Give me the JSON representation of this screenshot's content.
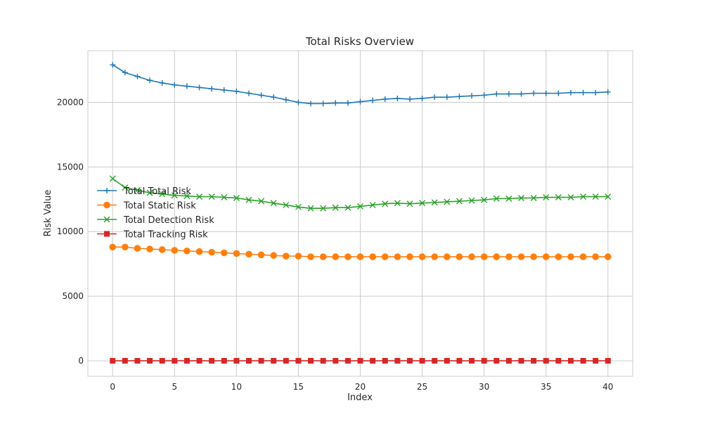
{
  "chart_data": {
    "type": "line",
    "title": "Total Risks Overview",
    "xlabel": "Index",
    "ylabel": "Risk Value",
    "xlim": [
      -2,
      42
    ],
    "ylim": [
      -1200,
      24000
    ],
    "xticks": [
      0,
      5,
      10,
      15,
      20,
      25,
      30,
      35,
      40
    ],
    "yticks": [
      0,
      5000,
      10000,
      15000,
      20000
    ],
    "grid": true,
    "legend_position": "center-left",
    "x": [
      0,
      1,
      2,
      3,
      4,
      5,
      6,
      7,
      8,
      9,
      10,
      11,
      12,
      13,
      14,
      15,
      16,
      17,
      18,
      19,
      20,
      21,
      22,
      23,
      24,
      25,
      26,
      27,
      28,
      29,
      30,
      31,
      32,
      33,
      34,
      35,
      36,
      37,
      38,
      39,
      40
    ],
    "series": [
      {
        "name": "Total Total Risk",
        "color": "#1f77b4",
        "marker": "plus",
        "values": [
          22900,
          22300,
          22000,
          21700,
          21500,
          21350,
          21250,
          21150,
          21050,
          20950,
          20850,
          20700,
          20550,
          20400,
          20200,
          20000,
          19900,
          19900,
          19950,
          19950,
          20050,
          20150,
          20250,
          20300,
          20250,
          20300,
          20400,
          20400,
          20450,
          20500,
          20550,
          20650,
          20650,
          20650,
          20700,
          20700,
          20700,
          20750,
          20750,
          20750,
          20800
        ]
      },
      {
        "name": "Total Static Risk",
        "color": "#ff7f0e",
        "marker": "circle",
        "values": [
          8800,
          8800,
          8700,
          8650,
          8600,
          8550,
          8500,
          8450,
          8400,
          8350,
          8300,
          8250,
          8200,
          8150,
          8100,
          8100,
          8050,
          8050,
          8050,
          8050,
          8050,
          8050,
          8050,
          8050,
          8050,
          8050,
          8050,
          8050,
          8050,
          8050,
          8050,
          8050,
          8050,
          8050,
          8050,
          8050,
          8050,
          8050,
          8050,
          8050,
          8050
        ]
      },
      {
        "name": "Total Detection Risk",
        "color": "#2ca02c",
        "marker": "x",
        "values": [
          14100,
          13400,
          13200,
          13000,
          12900,
          12800,
          12750,
          12700,
          12700,
          12650,
          12600,
          12450,
          12350,
          12200,
          12050,
          11900,
          11800,
          11800,
          11850,
          11850,
          11950,
          12050,
          12150,
          12200,
          12150,
          12200,
          12250,
          12300,
          12350,
          12400,
          12450,
          12550,
          12550,
          12600,
          12600,
          12650,
          12650,
          12650,
          12700,
          12700,
          12700
        ]
      },
      {
        "name": "Total Tracking Risk",
        "color": "#d62728",
        "marker": "square",
        "values": [
          0,
          0,
          0,
          0,
          0,
          0,
          0,
          0,
          0,
          0,
          0,
          0,
          0,
          0,
          0,
          0,
          0,
          0,
          0,
          0,
          0,
          0,
          0,
          0,
          0,
          0,
          0,
          0,
          0,
          0,
          0,
          0,
          0,
          0,
          0,
          0,
          0,
          0,
          0,
          0,
          0
        ]
      }
    ]
  }
}
